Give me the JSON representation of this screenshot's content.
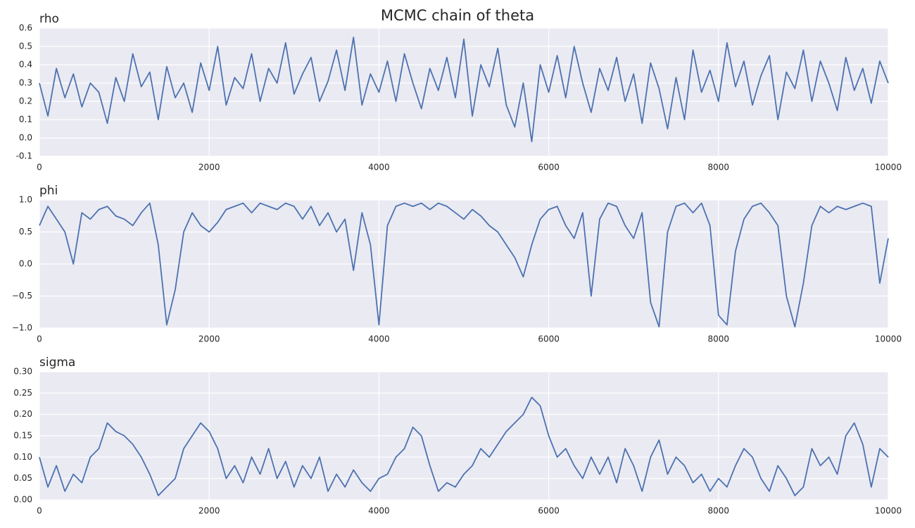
{
  "title": "MCMC chain of theta",
  "chart_data": [
    {
      "type": "line",
      "title": "rho",
      "color": "#4c72b0",
      "grid": true,
      "x": [
        0,
        100,
        200,
        300,
        400,
        500,
        600,
        700,
        800,
        900,
        1000,
        1100,
        1200,
        1300,
        1400,
        1500,
        1600,
        1700,
        1800,
        1900,
        2000,
        2100,
        2200,
        2300,
        2400,
        2500,
        2600,
        2700,
        2800,
        2900,
        3000,
        3100,
        3200,
        3300,
        3400,
        3500,
        3600,
        3700,
        3800,
        3900,
        4000,
        4100,
        4200,
        4300,
        4400,
        4500,
        4600,
        4700,
        4800,
        4900,
        5000,
        5100,
        5200,
        5300,
        5400,
        5500,
        5600,
        5700,
        5800,
        5900,
        6000,
        6100,
        6200,
        6300,
        6400,
        6500,
        6600,
        6700,
        6800,
        6900,
        7000,
        7100,
        7200,
        7300,
        7400,
        7500,
        7600,
        7700,
        7800,
        7900,
        8000,
        8100,
        8200,
        8300,
        8400,
        8500,
        8600,
        8700,
        8800,
        8900,
        9000,
        9100,
        9200,
        9300,
        9400,
        9500,
        9600,
        9700,
        9800,
        9900,
        10000
      ],
      "values": [
        0.3,
        0.12,
        0.38,
        0.22,
        0.35,
        0.17,
        0.3,
        0.25,
        0.08,
        0.33,
        0.2,
        0.46,
        0.28,
        0.36,
        0.1,
        0.39,
        0.22,
        0.3,
        0.14,
        0.41,
        0.26,
        0.5,
        0.18,
        0.33,
        0.27,
        0.46,
        0.2,
        0.38,
        0.3,
        0.52,
        0.24,
        0.35,
        0.44,
        0.2,
        0.31,
        0.48,
        0.26,
        0.55,
        0.18,
        0.35,
        0.25,
        0.42,
        0.2,
        0.46,
        0.3,
        0.16,
        0.38,
        0.26,
        0.44,
        0.22,
        0.54,
        0.12,
        0.4,
        0.28,
        0.49,
        0.18,
        0.06,
        0.3,
        -0.02,
        0.4,
        0.25,
        0.45,
        0.22,
        0.5,
        0.3,
        0.14,
        0.38,
        0.26,
        0.44,
        0.2,
        0.35,
        0.08,
        0.41,
        0.27,
        0.05,
        0.33,
        0.1,
        0.48,
        0.25,
        0.37,
        0.2,
        0.52,
        0.28,
        0.42,
        0.18,
        0.34,
        0.45,
        0.1,
        0.36,
        0.27,
        0.48,
        0.2,
        0.42,
        0.3,
        0.15,
        0.44,
        0.26,
        0.38,
        0.19,
        0.42,
        0.3
      ],
      "xlim": [
        0,
        10000
      ],
      "xticks": [
        0,
        2000,
        4000,
        6000,
        8000,
        10000
      ],
      "ylim": [
        -0.1,
        0.6
      ],
      "yticks": [
        {
          "value": -0.1,
          "label": "-0.1"
        },
        {
          "value": 0,
          "label": "0.0"
        },
        0.1,
        0.2,
        0.3,
        0.4,
        0.5,
        0.6
      ]
    },
    {
      "type": "line",
      "title": "phi",
      "color": "#4c72b0",
      "grid": true,
      "x": [
        0,
        100,
        200,
        300,
        400,
        500,
        600,
        700,
        800,
        900,
        1000,
        1100,
        1200,
        1300,
        1400,
        1500,
        1600,
        1700,
        1800,
        1900,
        2000,
        2100,
        2200,
        2300,
        2400,
        2500,
        2600,
        2700,
        2800,
        2900,
        3000,
        3100,
        3200,
        3300,
        3400,
        3500,
        3600,
        3700,
        3800,
        3900,
        4000,
        4100,
        4200,
        4300,
        4400,
        4500,
        4600,
        4700,
        4800,
        4900,
        5000,
        5100,
        5200,
        5300,
        5400,
        5500,
        5600,
        5700,
        5800,
        5900,
        6000,
        6100,
        6200,
        6300,
        6400,
        6500,
        6600,
        6700,
        6800,
        6900,
        7000,
        7100,
        7200,
        7300,
        7400,
        7500,
        7600,
        7700,
        7800,
        7900,
        8000,
        8100,
        8200,
        8300,
        8400,
        8500,
        8600,
        8700,
        8800,
        8900,
        9000,
        9100,
        9200,
        9300,
        9400,
        9500,
        9600,
        9700,
        9800,
        9900,
        10000
      ],
      "values": [
        0.6,
        0.9,
        0.7,
        0.5,
        0.0,
        0.8,
        0.7,
        0.85,
        0.9,
        0.75,
        0.7,
        0.6,
        0.8,
        0.95,
        0.3,
        -0.95,
        -0.4,
        0.5,
        0.8,
        0.6,
        0.5,
        0.65,
        0.85,
        0.9,
        0.95,
        0.8,
        0.95,
        0.9,
        0.85,
        0.95,
        0.9,
        0.7,
        0.9,
        0.6,
        0.8,
        0.5,
        0.7,
        -0.1,
        0.8,
        0.3,
        -0.95,
        0.6,
        0.9,
        0.95,
        0.9,
        0.95,
        0.85,
        0.95,
        0.9,
        0.8,
        0.7,
        0.85,
        0.75,
        0.6,
        0.5,
        0.3,
        0.1,
        -0.2,
        0.3,
        0.7,
        0.85,
        0.9,
        0.6,
        0.4,
        0.8,
        -0.5,
        0.7,
        0.95,
        0.9,
        0.6,
        0.4,
        0.8,
        -0.6,
        -0.98,
        0.5,
        0.9,
        0.95,
        0.8,
        0.95,
        0.6,
        -0.8,
        -0.95,
        0.2,
        0.7,
        0.9,
        0.95,
        0.8,
        0.6,
        -0.5,
        -0.98,
        -0.3,
        0.6,
        0.9,
        0.8,
        0.9,
        0.85,
        0.9,
        0.95,
        0.9,
        -0.3,
        0.4
      ],
      "xlim": [
        0,
        10000
      ],
      "xticks": [
        0,
        2000,
        4000,
        6000,
        8000,
        10000
      ],
      "ylim": [
        -1,
        1
      ],
      "yticks": [
        {
          "value": -1,
          "label": "−1.0"
        },
        {
          "value": -0.5,
          "label": "−0.5"
        },
        {
          "value": 0,
          "label": "0.0"
        },
        0.5,
        {
          "value": 1,
          "label": "1.0"
        }
      ]
    },
    {
      "type": "line",
      "title": "sigma",
      "color": "#4c72b0",
      "grid": true,
      "x": [
        0,
        100,
        200,
        300,
        400,
        500,
        600,
        700,
        800,
        900,
        1000,
        1100,
        1200,
        1300,
        1400,
        1500,
        1600,
        1700,
        1800,
        1900,
        2000,
        2100,
        2200,
        2300,
        2400,
        2500,
        2600,
        2700,
        2800,
        2900,
        3000,
        3100,
        3200,
        3300,
        3400,
        3500,
        3600,
        3700,
        3800,
        3900,
        4000,
        4100,
        4200,
        4300,
        4400,
        4500,
        4600,
        4700,
        4800,
        4900,
        5000,
        5100,
        5200,
        5300,
        5400,
        5500,
        5600,
        5700,
        5800,
        5900,
        6000,
        6100,
        6200,
        6300,
        6400,
        6500,
        6600,
        6700,
        6800,
        6900,
        7000,
        7100,
        7200,
        7300,
        7400,
        7500,
        7600,
        7700,
        7800,
        7900,
        8000,
        8100,
        8200,
        8300,
        8400,
        8500,
        8600,
        8700,
        8800,
        8900,
        9000,
        9100,
        9200,
        9300,
        9400,
        9500,
        9600,
        9700,
        9800,
        9900,
        10000
      ],
      "values": [
        0.1,
        0.03,
        0.08,
        0.02,
        0.06,
        0.04,
        0.1,
        0.12,
        0.18,
        0.16,
        0.15,
        0.13,
        0.1,
        0.06,
        0.01,
        0.03,
        0.05,
        0.12,
        0.15,
        0.18,
        0.16,
        0.12,
        0.05,
        0.08,
        0.04,
        0.1,
        0.06,
        0.12,
        0.05,
        0.09,
        0.03,
        0.08,
        0.05,
        0.1,
        0.02,
        0.06,
        0.03,
        0.07,
        0.04,
        0.02,
        0.05,
        0.06,
        0.1,
        0.12,
        0.17,
        0.15,
        0.08,
        0.02,
        0.04,
        0.03,
        0.06,
        0.08,
        0.12,
        0.1,
        0.13,
        0.16,
        0.18,
        0.2,
        0.24,
        0.22,
        0.15,
        0.1,
        0.12,
        0.08,
        0.05,
        0.1,
        0.06,
        0.1,
        0.04,
        0.12,
        0.08,
        0.02,
        0.1,
        0.14,
        0.06,
        0.1,
        0.08,
        0.04,
        0.06,
        0.02,
        0.05,
        0.03,
        0.08,
        0.12,
        0.1,
        0.05,
        0.02,
        0.08,
        0.05,
        0.01,
        0.03,
        0.12,
        0.08,
        0.1,
        0.06,
        0.15,
        0.18,
        0.13,
        0.03,
        0.12,
        0.1
      ],
      "xlim": [
        0,
        10000
      ],
      "xticks": [
        0,
        2000,
        4000,
        6000,
        8000,
        10000
      ],
      "ylim": [
        0,
        0.3
      ],
      "yticks": [
        {
          "value": 0,
          "label": "0.00"
        },
        0.05,
        {
          "value": 0.1,
          "label": "0.10"
        },
        0.15,
        {
          "value": 0.2,
          "label": "0.20"
        },
        0.25,
        {
          "value": 0.3,
          "label": "0.30"
        }
      ]
    }
  ]
}
